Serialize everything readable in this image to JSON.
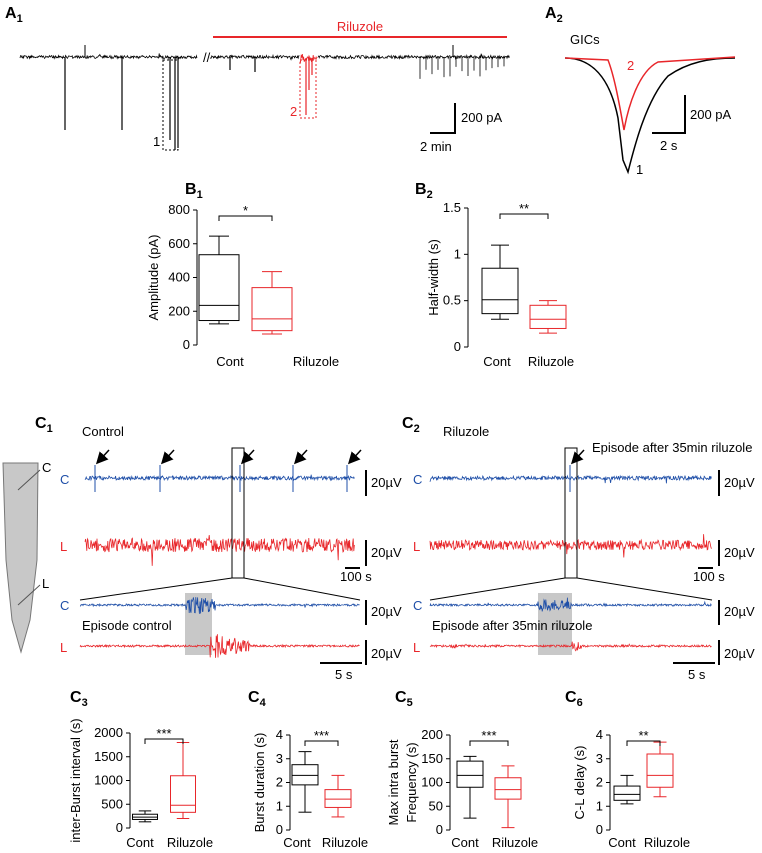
{
  "figure": {
    "a1": {
      "panel": "A",
      "index": "1",
      "drug": "Riluzole",
      "event1": "1",
      "event2": "2",
      "scale_y": "200 pA",
      "scale_x": "2 min"
    },
    "a2": {
      "panel": "A",
      "index": "2",
      "title": "GICs",
      "trace2": "2",
      "trace1": "1",
      "scale_y": "200 pA",
      "scale_x": "2 s"
    },
    "c1": {
      "panel": "C",
      "index": "1",
      "title": "Control",
      "ch_c": "C",
      "ch_l": "L",
      "scale_c": "20µV",
      "scale_l": "20µV",
      "scale_x": "100 s",
      "zoom_c": "C",
      "zoom_l": "L",
      "episode": "Episode control",
      "zoom_scale_c": "20µV",
      "zoom_scale_l": "20µV",
      "zoom_scale_x": "5 s"
    },
    "c2": {
      "panel": "C",
      "index": "2",
      "title": "Riluzole",
      "annotation": "Episode after 35min riluzole",
      "ch_c": "C",
      "ch_l": "L",
      "scale_c": "20µV",
      "scale_l": "20µV",
      "scale_x": "100 s",
      "zoom_c": "C",
      "zoom_l": "L",
      "episode": "Episode after 35min riluzole",
      "zoom_scale_c": "20µV",
      "zoom_scale_l": "20µV",
      "zoom_scale_x": "5 s"
    },
    "schematic": {
      "c": "C",
      "l": "L"
    }
  },
  "chart_data": [
    {
      "type": "box",
      "panel": "B",
      "index": "1",
      "ylabel": "Amplitude (pA)",
      "categories": [
        "Cont",
        "Riluzole"
      ],
      "colors": [
        "#000000",
        "#e8262a"
      ],
      "boxes": [
        {
          "min": 125,
          "q1": 145,
          "median": 235,
          "q3": 535,
          "max": 645
        },
        {
          "min": 65,
          "q1": 85,
          "median": 155,
          "q3": 340,
          "max": 435
        }
      ],
      "ylim": [
        0,
        800
      ],
      "yticks": [
        0,
        200,
        400,
        600,
        800
      ],
      "significance": "*"
    },
    {
      "type": "box",
      "panel": "B",
      "index": "2",
      "ylabel": "Half-width (s)",
      "categories": [
        "Cont",
        "Riluzole"
      ],
      "colors": [
        "#000000",
        "#e8262a"
      ],
      "boxes": [
        {
          "min": 0.3,
          "q1": 0.36,
          "median": 0.51,
          "q3": 0.85,
          "max": 1.1
        },
        {
          "min": 0.15,
          "q1": 0.2,
          "median": 0.3,
          "q3": 0.45,
          "max": 0.5
        }
      ],
      "ylim": [
        0,
        1.5
      ],
      "yticks": [
        0,
        0.5,
        1,
        1.5
      ],
      "significance": "**"
    },
    {
      "type": "box",
      "panel": "C",
      "index": "3",
      "ylabel": "inter-Burst interval (s)",
      "categories": [
        "Cont",
        "Riluzole"
      ],
      "colors": [
        "#000000",
        "#e8262a"
      ],
      "boxes": [
        {
          "min": 130,
          "q1": 180,
          "median": 230,
          "q3": 290,
          "max": 360
        },
        {
          "min": 200,
          "q1": 330,
          "median": 480,
          "q3": 1100,
          "max": 1800
        }
      ],
      "ylim": [
        0,
        2000
      ],
      "yticks": [
        0,
        500,
        1000,
        1500,
        2000
      ],
      "significance": "***"
    },
    {
      "type": "box",
      "panel": "C",
      "index": "4",
      "ylabel": "Burst duration (s)",
      "categories": [
        "Cont",
        "Riluzole"
      ],
      "colors": [
        "#000000",
        "#e8262a"
      ],
      "boxes": [
        {
          "min": 0.75,
          "q1": 1.9,
          "median": 2.3,
          "q3": 2.75,
          "max": 3.3
        },
        {
          "min": 0.55,
          "q1": 0.95,
          "median": 1.3,
          "q3": 1.7,
          "max": 2.3
        }
      ],
      "ylim": [
        0,
        4
      ],
      "yticks": [
        0,
        1,
        2,
        3,
        4
      ],
      "significance": "***"
    },
    {
      "type": "box",
      "panel": "C",
      "index": "5",
      "ylabel": [
        "Max intra burst",
        "Frequency (s)"
      ],
      "categories": [
        "Cont",
        "Riluzole"
      ],
      "colors": [
        "#000000",
        "#e8262a"
      ],
      "boxes": [
        {
          "min": 25,
          "q1": 90,
          "median": 115,
          "q3": 145,
          "max": 155
        },
        {
          "min": 5,
          "q1": 65,
          "median": 85,
          "q3": 110,
          "max": 135
        }
      ],
      "ylim": [
        0,
        200
      ],
      "yticks": [
        0,
        50,
        100,
        150,
        200
      ],
      "significance": "***"
    },
    {
      "type": "box",
      "panel": "C",
      "index": "6",
      "ylabel": "C-L delay (s)",
      "categories": [
        "Cont",
        "Riluzole"
      ],
      "colors": [
        "#000000",
        "#e8262a"
      ],
      "boxes": [
        {
          "min": 1.1,
          "q1": 1.25,
          "median": 1.5,
          "q3": 1.85,
          "max": 2.3
        },
        {
          "min": 1.4,
          "q1": 1.8,
          "median": 2.3,
          "q3": 3.2,
          "max": 3.7
        }
      ],
      "ylim": [
        0,
        4
      ],
      "yticks": [
        0,
        1,
        2,
        3,
        4
      ],
      "significance": "**"
    }
  ]
}
